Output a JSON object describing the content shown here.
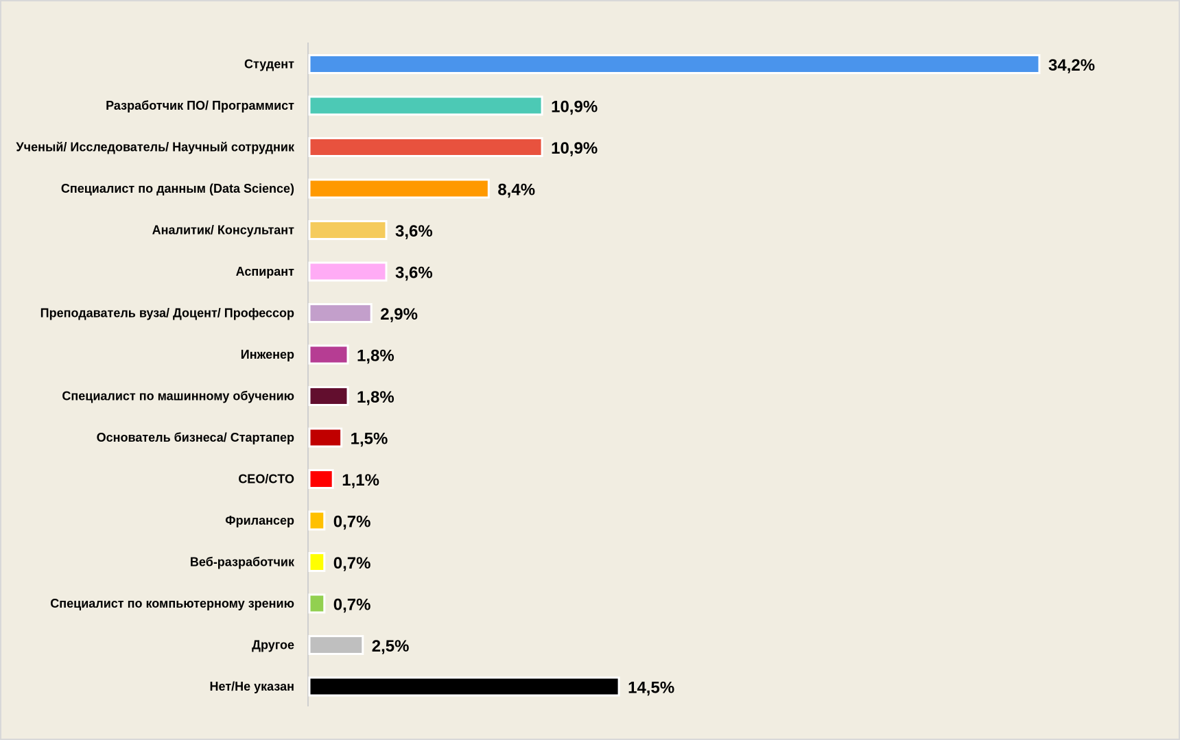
{
  "chart_data": {
    "type": "bar",
    "orientation": "horizontal",
    "categories": [
      "Студент",
      "Разработчик ПО/ Программист",
      "Ученый/ Исследователь/ Научный сотрудник",
      "Специалист по данным (Data Science)",
      "Аналитик/ Консультант",
      "Аспирант",
      "Преподаватель вуза/ Доцент/ Профессор",
      "Инженер",
      "Специалист по машинному обучению",
      "Основатель бизнеса/ Стартапер",
      "CEO/CTO",
      "Фрилансер",
      "Веб-разработчик",
      "Специалист по компьютерному зрению",
      "Другое",
      "Нет/Не указан"
    ],
    "values": [
      34.2,
      10.9,
      10.9,
      8.4,
      3.6,
      3.6,
      2.9,
      1.8,
      1.8,
      1.5,
      1.1,
      0.7,
      0.7,
      0.7,
      2.5,
      14.5
    ],
    "value_labels": [
      "34,2%",
      "10,9%",
      "10,9%",
      "8,4%",
      "3,6%",
      "3,6%",
      "2,9%",
      "1,8%",
      "1,8%",
      "1,5%",
      "1,1%",
      "0,7%",
      "0,7%",
      "0,7%",
      "2,5%",
      "14,5%"
    ],
    "colors": [
      "#4a94ec",
      "#4cc9b5",
      "#e8523e",
      "#ff9900",
      "#f5cb5c",
      "#ffabf5",
      "#c39fcb",
      "#b63d93",
      "#620e2e",
      "#c00000",
      "#ff0000",
      "#ffc000",
      "#ffff00",
      "#92d050",
      "#bfbfbf",
      "#000000"
    ],
    "unit": "%",
    "title": "",
    "xlabel": "",
    "ylabel": "",
    "xlim": [
      0,
      34.2
    ],
    "grid": false,
    "legend": "none",
    "background": "#f1ede1"
  }
}
